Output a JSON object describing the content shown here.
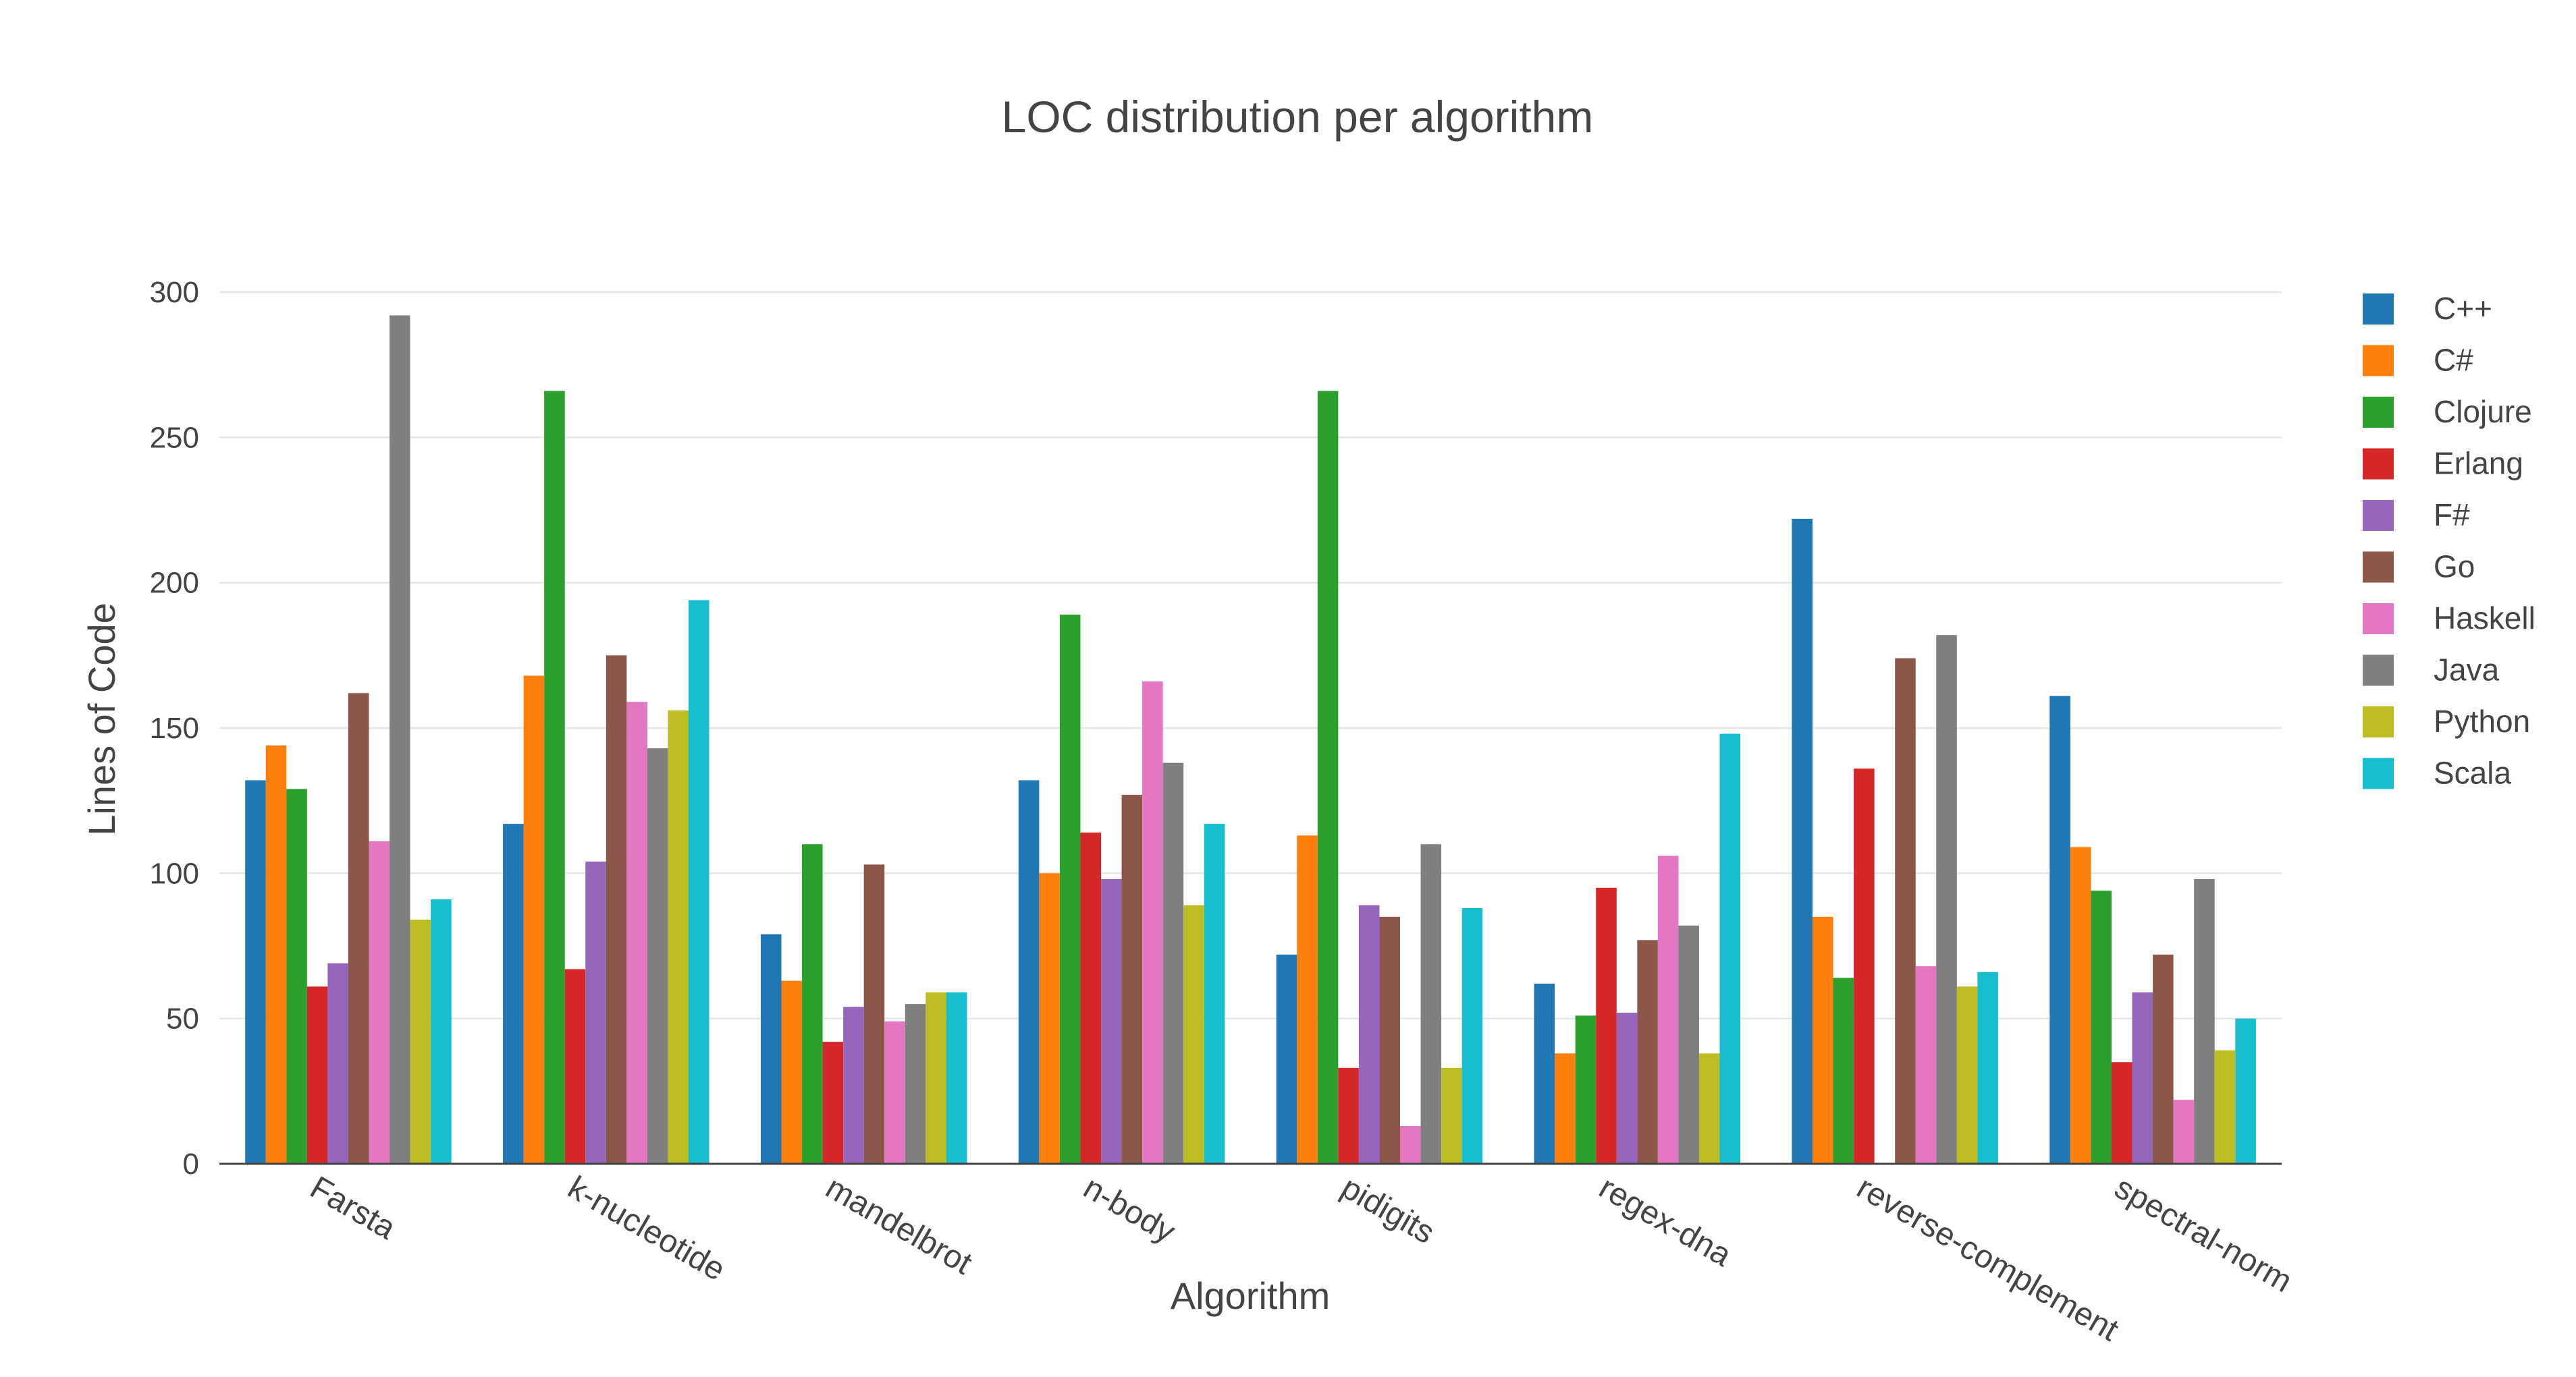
{
  "chart_data": {
    "type": "bar",
    "title": "LOC distribution per algorithm",
    "xlabel": "Algorithm",
    "ylabel": "Lines of Code",
    "ylim": [
      0,
      300
    ],
    "yticks": [
      0,
      50,
      100,
      150,
      200,
      250,
      300
    ],
    "grid": true,
    "legend_position": "right",
    "categories": [
      "Farsta",
      "k-nucleotide",
      "mandelbrot",
      "n-body",
      "pidigits",
      "regex-dna",
      "reverse-complement",
      "spectral-norm"
    ],
    "series": [
      {
        "name": "C++",
        "color": "#1f77b4",
        "values": [
          132,
          117,
          79,
          132,
          72,
          62,
          222,
          161
        ]
      },
      {
        "name": "C#",
        "color": "#ff7f0e",
        "values": [
          144,
          168,
          63,
          100,
          113,
          38,
          85,
          109
        ]
      },
      {
        "name": "Clojure",
        "color": "#2ca02c",
        "values": [
          129,
          266,
          110,
          189,
          266,
          51,
          64,
          94
        ]
      },
      {
        "name": "Erlang",
        "color": "#d62728",
        "values": [
          61,
          67,
          42,
          114,
          33,
          95,
          136,
          35
        ]
      },
      {
        "name": "F#",
        "color": "#9467bd",
        "values": [
          69,
          104,
          54,
          98,
          89,
          52,
          null,
          59
        ]
      },
      {
        "name": "Go",
        "color": "#8c564b",
        "values": [
          162,
          175,
          103,
          127,
          85,
          77,
          174,
          72
        ]
      },
      {
        "name": "Haskell",
        "color": "#e377c2",
        "values": [
          111,
          159,
          49,
          166,
          13,
          106,
          68,
          22
        ]
      },
      {
        "name": "Java",
        "color": "#7f7f7f",
        "values": [
          292,
          143,
          55,
          138,
          110,
          82,
          182,
          98
        ]
      },
      {
        "name": "Python",
        "color": "#bcbd22",
        "values": [
          84,
          156,
          59,
          89,
          33,
          38,
          61,
          39
        ]
      },
      {
        "name": "Scala",
        "color": "#17becf",
        "values": [
          91,
          194,
          59,
          117,
          88,
          148,
          66,
          50
        ]
      }
    ]
  }
}
